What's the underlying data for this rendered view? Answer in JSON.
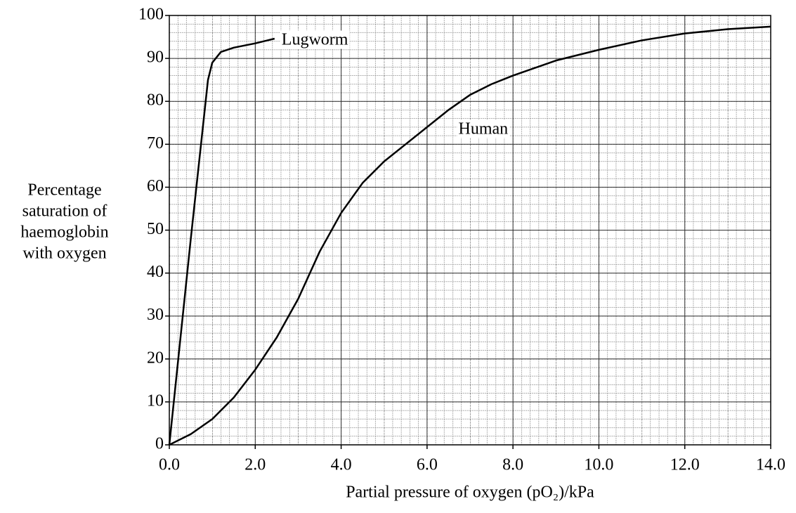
{
  "chart_data": {
    "type": "line",
    "x_label": "Partial pressure of oxygen (pO₂)/kPa",
    "y_label": [
      "Percentage",
      "saturation of",
      "haemoglobin",
      "with oxygen"
    ],
    "xlim": [
      0,
      14
    ],
    "ylim": [
      0,
      100
    ],
    "xticks": [
      {
        "value": 0,
        "label": "0.0"
      },
      {
        "value": 2,
        "label": "2.0"
      },
      {
        "value": 4,
        "label": "4.0"
      },
      {
        "value": 6,
        "label": "6.0"
      },
      {
        "value": 8,
        "label": "8.0"
      },
      {
        "value": 10,
        "label": "10.0"
      },
      {
        "value": 12,
        "label": "12.0"
      },
      {
        "value": 14,
        "label": "14.0"
      }
    ],
    "yticks": [
      0,
      10,
      20,
      30,
      40,
      50,
      60,
      70,
      80,
      90,
      100
    ],
    "grid": true,
    "series": [
      {
        "name": "Lugworm",
        "color": "#000000",
        "x": [
          0,
          0.5,
          0.9,
          1.0,
          1.2,
          1.5,
          2.0,
          2.45
        ],
        "values": [
          0,
          48,
          85,
          89,
          91.5,
          92.5,
          93.5,
          94.6
        ]
      },
      {
        "name": "Human",
        "color": "#000000",
        "x": [
          0,
          0.5,
          1,
          1.5,
          2,
          2.5,
          3,
          3.5,
          4,
          4.5,
          5,
          5.5,
          6,
          6.5,
          7,
          7.5,
          8,
          9,
          10,
          11,
          12,
          13,
          14
        ],
        "values": [
          0,
          2.5,
          6,
          11,
          17.5,
          25,
          34,
          45,
          54,
          61,
          66,
          70,
          74,
          78,
          81.5,
          84,
          86,
          89.5,
          92,
          94.2,
          95.8,
          96.8,
          97.4
        ]
      }
    ]
  }
}
